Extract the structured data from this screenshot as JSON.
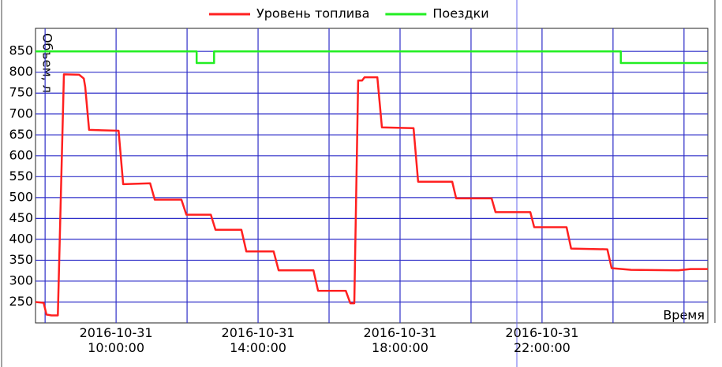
{
  "chart_data": {
    "type": "line",
    "legend": [
      "Уровень топлива",
      "Поездки"
    ],
    "y_label": "Объем, л",
    "x_label": "Время",
    "grid": true,
    "ylim": [
      200,
      905
    ],
    "yticks": [
      250,
      300,
      350,
      400,
      450,
      500,
      550,
      600,
      650,
      700,
      750,
      800,
      850
    ],
    "xlim": [
      7.73,
      26.67
    ],
    "xticks": [
      {
        "value": 8,
        "label": null
      },
      {
        "value": 10,
        "label": "2016-10-31\n10:00:00"
      },
      {
        "value": 12,
        "label": null
      },
      {
        "value": 14,
        "label": "2016-10-31\n14:00:00"
      },
      {
        "value": 16,
        "label": null
      },
      {
        "value": 18,
        "label": "2016-10-31\n18:00:00"
      },
      {
        "value": 20,
        "label": null
      },
      {
        "value": 22,
        "label": "2016-10-31\n22:00:00"
      },
      {
        "value": 24,
        "label": null
      },
      {
        "value": 26,
        "label": null
      }
    ],
    "series": [
      {
        "name": "Уровень топлива",
        "color": "#ff2020",
        "x": [
          7.73,
          7.96,
          8.04,
          8.18,
          8.36,
          8.53,
          8.96,
          9.09,
          9.13,
          9.24,
          10.07,
          10.2,
          10.96,
          11.09,
          11.84,
          11.98,
          12.67,
          12.8,
          13.53,
          13.67,
          14.44,
          14.58,
          15.56,
          15.69,
          16.47,
          16.6,
          16.71,
          16.82,
          16.93,
          17.0,
          17.36,
          17.49,
          18.38,
          18.51,
          19.47,
          19.58,
          20.58,
          20.69,
          21.67,
          21.78,
          22.69,
          22.82,
          23.84,
          23.96,
          24.51,
          25.84,
          26.18,
          26.67
        ],
        "values": [
          250,
          248,
          220,
          218,
          218,
          795,
          794,
          785,
          765,
          662,
          660,
          532,
          534,
          495,
          495,
          459,
          459,
          423,
          423,
          371,
          371,
          326,
          326,
          277,
          277,
          247,
          247,
          780,
          780,
          788,
          788,
          668,
          666,
          538,
          538,
          498,
          498,
          465,
          465,
          429,
          429,
          378,
          376,
          331,
          327,
          326,
          329,
          329
        ]
      },
      {
        "name": "Поездки",
        "color": "#22ee22",
        "x": [
          7.73,
          12.27,
          12.27,
          12.76,
          12.76,
          24.22,
          24.22,
          26.67
        ],
        "values": [
          850,
          850,
          822,
          822,
          850,
          850,
          822,
          822
        ]
      }
    ]
  }
}
